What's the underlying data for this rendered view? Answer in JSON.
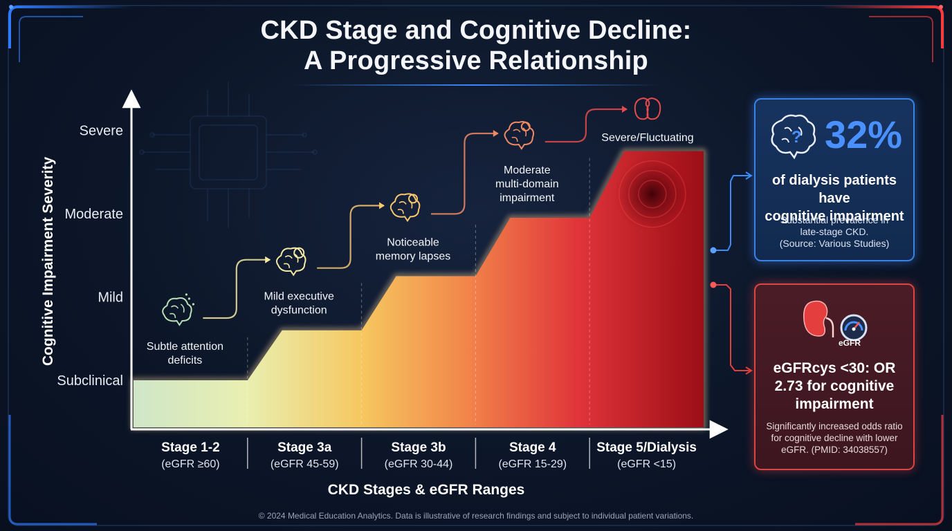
{
  "title_line1": "CKD Stage and Cognitive Decline:",
  "title_line2": "A Progressive Relationship",
  "colors": {
    "blue_accent": "#3a8cff",
    "red_accent": "#e53e3e",
    "background": "#0c1628"
  },
  "chart_data": {
    "type": "area",
    "xlabel": "CKD Stages & eGFR Ranges",
    "ylabel": "Cognitive Impairment Severity",
    "y_levels": [
      "Subclinical",
      "Mild",
      "Moderate",
      "Severe"
    ],
    "ylim": [
      0,
      3
    ],
    "stages": [
      {
        "name": "Stage 1-2",
        "egfr": "(eGFR ≥60)",
        "level": 0.0,
        "annotation": [
          "Subtle attention",
          "deficits"
        ],
        "icon": "brain-sparkle-icon"
      },
      {
        "name": "Stage 3a",
        "egfr": "(eGFR 45-59)",
        "level": 0.6,
        "annotation": [
          "Mild executive",
          "dysfunction"
        ],
        "icon": "brain-gear-icon"
      },
      {
        "name": "Stage 3b",
        "egfr": "(eGFR 30-44)",
        "level": 1.25,
        "annotation": [
          "Noticeable",
          "memory lapses"
        ],
        "icon": "brain-alert-icon"
      },
      {
        "name": "Stage 4",
        "egfr": "(eGFR 15-29)",
        "level": 1.95,
        "annotation": [
          "Moderate",
          "multi-domain",
          "impairment"
        ],
        "icon": "brain-question-icon"
      },
      {
        "name": "Stage 5/Dialysis",
        "egfr": "(eGFR <15)",
        "level": 2.75,
        "annotation": [
          "Severe/Fluctuating"
        ],
        "icon": "kidney-icon"
      }
    ],
    "grid": false
  },
  "stat_card": {
    "percent": "32%",
    "headline": [
      "of dialysis patients have",
      "cognitive impairment"
    ],
    "subtext": [
      "Substantial prevalence in",
      "late-stage CKD.",
      "(Source: Various Studies)"
    ],
    "icon": "brain-question-icon"
  },
  "odds_card": {
    "badge": "eGFR",
    "headline": [
      "eGFRcys <30: OR",
      "2.73 for cognitive",
      "impairment"
    ],
    "subtext": [
      "Significantly increased odds ratio",
      "for cognitive decline with lower",
      "eGFR. (PMID: 34038557)"
    ],
    "icon": "kidney-gauge-icon"
  },
  "footer": "© 2024 Medical Education Analytics. Data is illustrative of research findings and subject to individual patient variations."
}
